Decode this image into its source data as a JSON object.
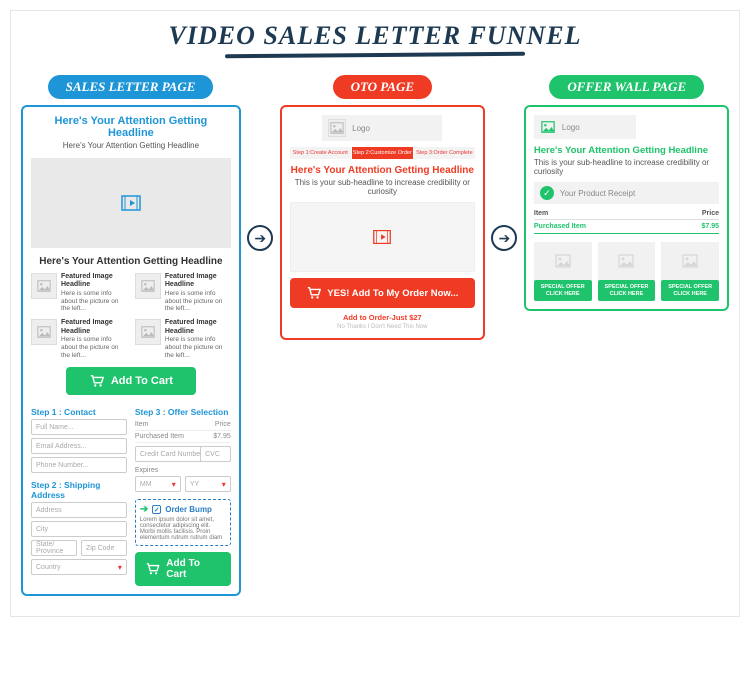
{
  "colors": {
    "title": "#1d3a52",
    "sales": "#1e95d6",
    "oto": "#ef3b24",
    "offer": "#1fc36b",
    "green": "#1fc36b"
  },
  "title": "VIDEO SALES LETTER FUNNEL",
  "labels": {
    "sales": "SALES LETTER PAGE",
    "oto": "OTO PAGE",
    "offer": "OFFER WALL PAGE"
  },
  "sales": {
    "headline": "Here's Your Attention Getting Headline",
    "sub": "Here's Your Attention Getting Headline",
    "section_headline": "Here's Your Attention Getting Headline",
    "feature": {
      "title": "Featured Image Headline",
      "body": "Here is some info about the picture on the left..."
    },
    "add_to_cart": "Add To Cart",
    "step1": "Step 1 : Contact",
    "step2": "Step 2 : Shipping Address",
    "step3": "Step 3 : Offer Selection",
    "ph_full": "Full Name...",
    "ph_email": "Email Address...",
    "ph_phone": "Phone Number...",
    "ph_addr": "Address",
    "ph_city": "City",
    "ph_state": "State/ Province",
    "ph_zip": "Zip Code",
    "ph_country": "Country",
    "item": "Item",
    "price": "Price",
    "purchased": "Purchased Item",
    "pval": "$7.95",
    "cc": "Credit Card Number",
    "cvc": "CVC",
    "exp": "Expires",
    "mm": "MM",
    "yy": "YY",
    "bump_title": "Order Bump",
    "bump_body": "Lorem ipsum dolor sit amet, consectetur adipiscing elit. Morbi mollis facilisis. Proin elementum rutrum rutrum diam"
  },
  "oto": {
    "logo": "Logo",
    "steps": [
      "Step 1:Create Account",
      "Step 2:Customize Order",
      "Step 3:Order Complete"
    ],
    "active_step": 1,
    "headline": "Here's Your Attention Getting Headline",
    "sub": "This is your sub-headline to increase credibility or curiosity",
    "btn": "YES! Add To My Order Now...",
    "add": "Add to Order-Just $27",
    "no": "No Thanks I Don't Need This Now"
  },
  "offer": {
    "logo": "Logo",
    "headline": "Here's Your Attention Getting Headline",
    "sub": "This is your sub-headline to increase credibility or curiosity",
    "receipt": "Your Product Receipt",
    "item": "Item",
    "price": "Price",
    "purchased": "Purchased Item",
    "pval": "$7.95",
    "offer_btn_l1": "SPECIAL OFFER",
    "offer_btn_l2": "CLICK HERE"
  }
}
